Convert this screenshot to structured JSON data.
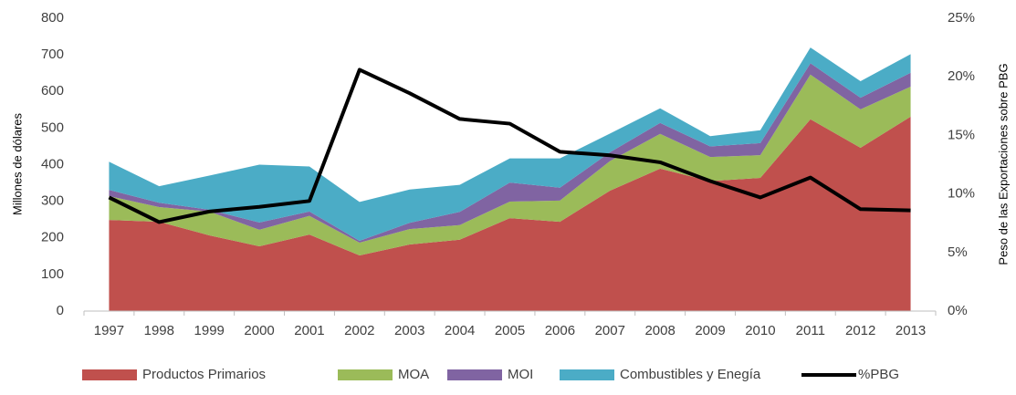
{
  "chart_data": {
    "type": "stacked_area_line",
    "categories": [
      "1997",
      "1998",
      "1999",
      "2000",
      "2001",
      "2002",
      "2003",
      "2004",
      "2005",
      "2006",
      "2007",
      "2008",
      "2009",
      "2010",
      "2011",
      "2012",
      "2013"
    ],
    "series": [
      {
        "name": "Productos Primarios",
        "color": "#c0504d",
        "values": [
          249,
          244,
          207,
          177,
          209,
          152,
          182,
          195,
          254,
          244,
          329,
          389,
          355,
          364,
          524,
          446,
          531
        ]
      },
      {
        "name": "MOA",
        "color": "#9bbb59",
        "values": [
          65,
          40,
          65,
          45,
          51,
          35,
          42,
          40,
          45,
          58,
          81,
          95,
          66,
          62,
          122,
          105,
          82
        ]
      },
      {
        "name": "MOI",
        "color": "#8064a2",
        "values": [
          17,
          12,
          5,
          20,
          12,
          5,
          17,
          36,
          52,
          35,
          24,
          30,
          29,
          33,
          31,
          32,
          38
        ]
      },
      {
        "name": "Combustibles y Enegía",
        "color": "#4bacc6",
        "values": [
          77,
          45,
          93,
          158,
          123,
          106,
          91,
          74,
          66,
          80,
          51,
          40,
          28,
          35,
          43,
          45,
          51
        ]
      },
      {
        "name": "%PBG",
        "color": "#000000",
        "axis": "y2",
        "values": [
          9.7,
          7.6,
          8.5,
          8.9,
          9.4,
          20.6,
          18.6,
          16.4,
          16.0,
          13.6,
          13.3,
          12.7,
          11.1,
          9.7,
          11.4,
          8.7,
          8.6
        ]
      }
    ],
    "y_label": "Millones de dólares",
    "y2_label": "Peso de las Exportaciones sobre PBG",
    "ylim": [
      0,
      800
    ],
    "yticks": [
      0,
      100,
      200,
      300,
      400,
      500,
      600,
      700,
      800
    ],
    "y2lim": [
      0,
      25
    ],
    "y2ticks": [
      {
        "value": 0,
        "label": "0%"
      },
      {
        "value": 5,
        "label": "5%"
      },
      {
        "value": 10,
        "label": "10%"
      },
      {
        "value": 15,
        "label": "15%"
      },
      {
        "value": 20,
        "label": "20%"
      },
      {
        "value": 25,
        "label": "25%"
      }
    ],
    "legend": "bottom"
  }
}
